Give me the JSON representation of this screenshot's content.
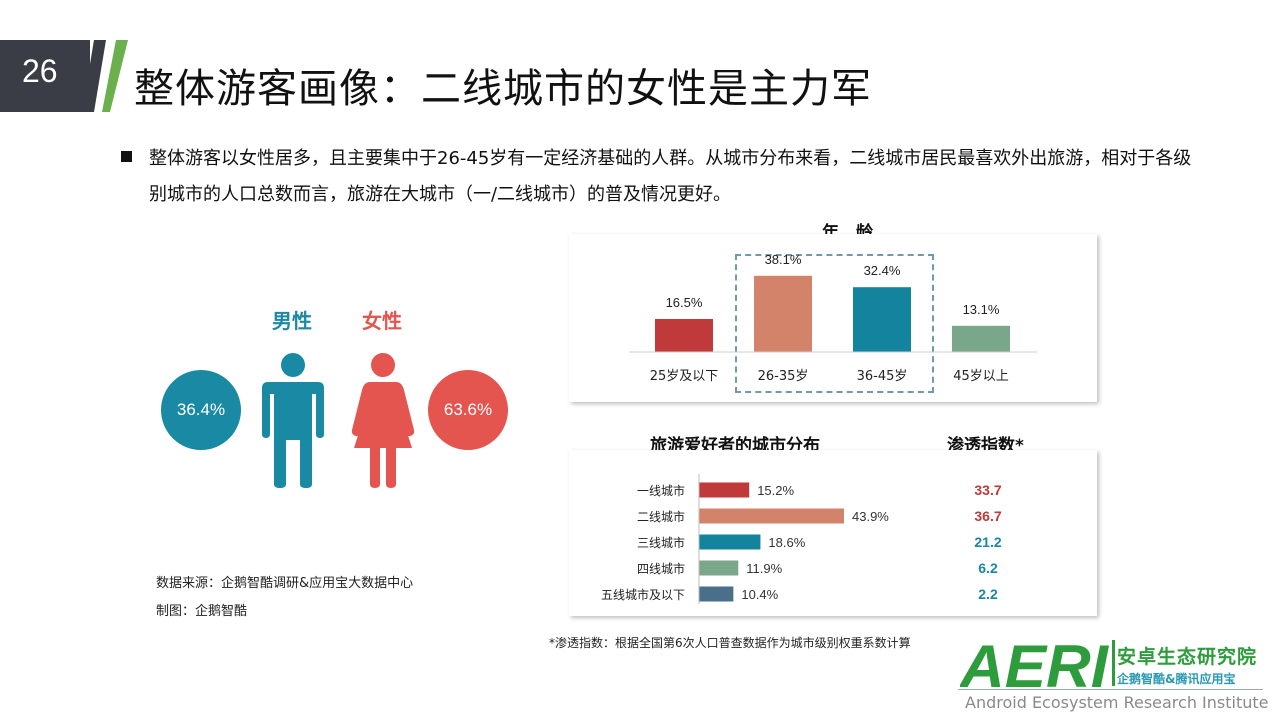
{
  "header": {
    "page_number": "26",
    "title": "整体游客画像：二线城市的女性是主力军"
  },
  "intro": {
    "text": "整体游客以女性居多，且主要集中于26-45岁有一定经济基础的人群。从城市分布来看，二线城市居民最喜欢外出旅游，相对于各级别城市的人口总数而言，旅游在大城市（一/二线城市）的普及情况更好。"
  },
  "gender": {
    "male_label": "男性",
    "female_label": "女性",
    "male_value": "36.4%",
    "female_value": "63.6%",
    "male_color": "#1a8aa4",
    "female_color": "#e5554f"
  },
  "source": {
    "data_source": "数据来源：企鹅智酷调研&应用宝大数据中心",
    "chart_by": "制图：企鹅智酷"
  },
  "chart_data": [
    {
      "type": "bar",
      "title": "年　龄",
      "categories": [
        "25岁及以下",
        "26-35岁",
        "36-45岁",
        "45岁以上"
      ],
      "values": [
        16.5,
        38.1,
        32.4,
        13.1
      ],
      "labels": [
        "16.5%",
        "38.1%",
        "32.4%",
        "13.1%"
      ],
      "colors": [
        "#c0393b",
        "#d4836b",
        "#13839e",
        "#7aa68a"
      ],
      "unit": "%",
      "ylim": [
        0,
        40
      ],
      "grid": false,
      "highlight": [
        "26-35岁",
        "36-45岁"
      ]
    },
    {
      "type": "bar",
      "orientation": "horizontal",
      "title": "旅游爱好者的城市分布",
      "categories": [
        "一线城市",
        "二线城市",
        "三线城市",
        "四线城市",
        "五线城市及以下"
      ],
      "values": [
        15.2,
        43.9,
        18.6,
        11.9,
        10.4
      ],
      "labels": [
        "15.2%",
        "43.9%",
        "18.6%",
        "11.9%",
        "10.4%"
      ],
      "colors": [
        "#c0393b",
        "#d4836b",
        "#13839e",
        "#7aa68a",
        "#4a6f8a"
      ],
      "unit": "%",
      "grid": false
    },
    {
      "type": "table",
      "title": "渗透指数*",
      "categories": [
        "一线城市",
        "二线城市",
        "三线城市",
        "四线城市",
        "五线城市及以下"
      ],
      "values": [
        33.7,
        36.7,
        21.2,
        6.2,
        2.2
      ],
      "labels": [
        "33.7",
        "36.7",
        "21.2",
        "6.2",
        "2.2"
      ],
      "colors": [
        "#c0393b",
        "#c0393b",
        "#1a86a3",
        "#1a86a3",
        "#1a86a3"
      ]
    }
  ],
  "footnote": "*渗透指数：根据全国第6次人口普查数据作为城市级别权重系数计算",
  "logo": {
    "letters": "AERI",
    "name_cn": "安卓生态研究院",
    "sub_cn": "企鹅智酷&腾讯应用宝",
    "name_en": "Android Ecosystem Research Institute",
    "brand_color": "#2e9c3c"
  }
}
